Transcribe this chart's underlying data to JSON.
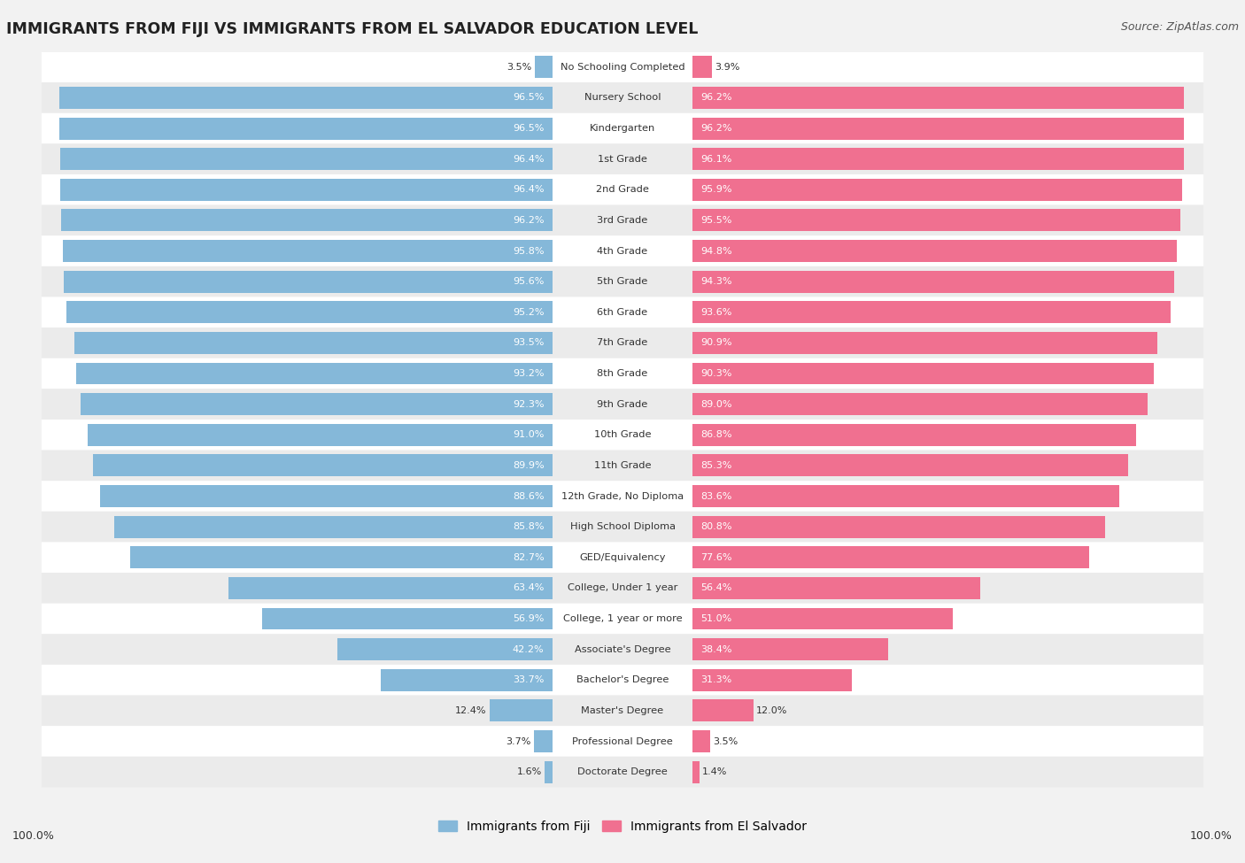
{
  "title": "IMMIGRANTS FROM FIJI VS IMMIGRANTS FROM EL SALVADOR EDUCATION LEVEL",
  "source": "Source: ZipAtlas.com",
  "fiji_color": "#85b8d9",
  "salvador_color": "#f07090",
  "bg_color": "#f2f2f2",
  "row_color_even": "#ffffff",
  "row_color_odd": "#ebebeb",
  "categories": [
    "No Schooling Completed",
    "Nursery School",
    "Kindergarten",
    "1st Grade",
    "2nd Grade",
    "3rd Grade",
    "4th Grade",
    "5th Grade",
    "6th Grade",
    "7th Grade",
    "8th Grade",
    "9th Grade",
    "10th Grade",
    "11th Grade",
    "12th Grade, No Diploma",
    "High School Diploma",
    "GED/Equivalency",
    "College, Under 1 year",
    "College, 1 year or more",
    "Associate's Degree",
    "Bachelor's Degree",
    "Master's Degree",
    "Professional Degree",
    "Doctorate Degree"
  ],
  "fiji_values": [
    3.5,
    96.5,
    96.5,
    96.4,
    96.4,
    96.2,
    95.8,
    95.6,
    95.2,
    93.5,
    93.2,
    92.3,
    91.0,
    89.9,
    88.6,
    85.8,
    82.7,
    63.4,
    56.9,
    42.2,
    33.7,
    12.4,
    3.7,
    1.6
  ],
  "salvador_values": [
    3.9,
    96.2,
    96.2,
    96.1,
    95.9,
    95.5,
    94.8,
    94.3,
    93.6,
    90.9,
    90.3,
    89.0,
    86.8,
    85.3,
    83.6,
    80.8,
    77.6,
    56.4,
    51.0,
    38.4,
    31.3,
    12.0,
    3.5,
    1.4
  ],
  "legend_fiji": "Immigrants from Fiji",
  "legend_salvador": "Immigrants from El Salvador",
  "axis_label_left": "100.0%",
  "axis_label_right": "100.0%"
}
